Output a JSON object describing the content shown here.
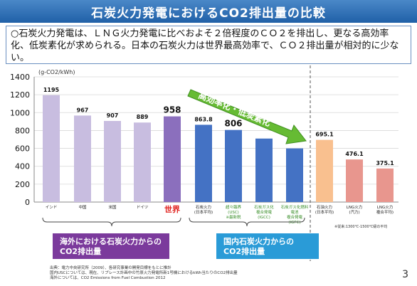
{
  "title": "石炭火力発電におけるCO2排出量の比較",
  "summary": "○石炭火力発電は、ＬＮＧ火力発電に比べおよそ２倍程度のＣＯ２を排出し、更なる高効率化、低炭素化が求められる。日本の石炭火力は世界最高効率で、ＣＯ２排出量が相対的に少ない。",
  "chart_data": {
    "type": "bar",
    "ylabel": "(g-CO2/kWh)",
    "ylim": [
      0,
      1400
    ],
    "yticks": [
      0,
      200,
      400,
      600,
      800,
      1000,
      1200,
      1400
    ],
    "grid": true,
    "bars": [
      {
        "label": "インド",
        "value": 1195,
        "value_label": "1195",
        "color": "#c8bde0"
      },
      {
        "label": "中国",
        "value": 967,
        "value_label": "967",
        "color": "#c8bde0"
      },
      {
        "label": "米国",
        "value": 907,
        "value_label": "907",
        "color": "#c8bde0"
      },
      {
        "label": "ドイツ",
        "value": 889,
        "value_label": "889",
        "color": "#c8bde0"
      },
      {
        "label": "世界",
        "value": 958,
        "value_label": "958",
        "color": "#8b6fbd"
      },
      {
        "label": "石炭火力\n(日本平均)",
        "value": 863.8,
        "value_label": "863.8",
        "color": "#4472c4"
      },
      {
        "label": "超々臨界\n(USC)\n※最新鋭",
        "value": 806,
        "value_label": "806",
        "color": "#4472c4"
      },
      {
        "label": "石炭ガス化\n複合発電\n(IGCC)",
        "value": 710,
        "value_label": "",
        "color": "#4472c4"
      },
      {
        "label": "石炭ガス化燃料\n電池\n複合発電\n(IGFC)",
        "value": 600,
        "value_label": "",
        "color": "#4472c4"
      },
      {
        "label": "石油火力\n(日本平均)",
        "value": 695.1,
        "value_label": "695.1",
        "color": "#f9c08f"
      },
      {
        "label": "LNG火力\n(汽力)",
        "value": 476.1,
        "value_label": "476.1",
        "color": "#e8968e"
      },
      {
        "label": "LNG火力\n複合平均)",
        "value": 375.1,
        "value_label": "375.1",
        "color": "#e8968e"
      }
    ],
    "arrow_label": "高効率化・低炭素化",
    "note": "※従来:1300℃-1500℃級の平均",
    "group_labels": [
      {
        "text": "海外における石炭火力からの\nCO2排出量",
        "color": "#7b3a9c"
      },
      {
        "text": "国内石炭火力からの\nCO2排出量",
        "color": "#2a9bd7"
      }
    ]
  },
  "sources": [
    "出典：電力中央研究所（2009）、各研究事業の開発目標をもとに推計",
    "国内USCについては、現在、リプレース計画中の竹原火力発電所新1号機におけるkWh当たりのCO2排出量",
    "海外については、CO2 Emissions from Fuel Combustion 2012"
  ],
  "page_number": "3"
}
